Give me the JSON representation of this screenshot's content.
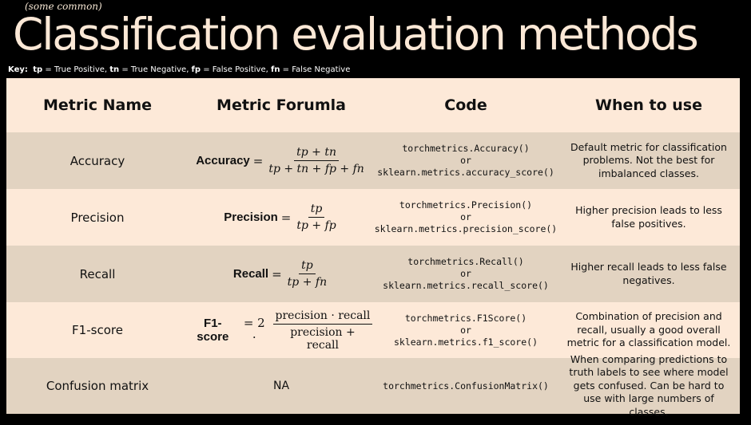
{
  "subtitle": "(some common)",
  "title": "Classification evaluation methods",
  "key": {
    "label": "Key:",
    "tp": "tp",
    "tp_def": " = True Positive, ",
    "tn": "tn",
    "tn_def": " = True Negative, ",
    "fp": "fp",
    "fp_def": " = False Positive, ",
    "fn": "fn",
    "fn_def": " = False Negative"
  },
  "headers": [
    "Metric Name",
    "Metric Forumla",
    "Code",
    "When to use"
  ],
  "rows": [
    {
      "name": "Accuracy",
      "formula_label": "Accuracy",
      "formula_eq": "=",
      "formula_num": "tp + tn",
      "formula_den": "tp + tn + fp + fn",
      "code1": "torchmetrics.Accuracy()",
      "code_or": "or",
      "code2": "sklearn.metrics.accuracy_score()",
      "use": "Default metric for classification problems. Not the best for imbalanced classes."
    },
    {
      "name": "Precision",
      "formula_label": "Precision",
      "formula_eq": "=",
      "formula_num": "tp",
      "formula_den": "tp + fp",
      "code1": "torchmetrics.Precision()",
      "code_or": "or",
      "code2": "sklearn.metrics.precision_score()",
      "use": "Higher precision leads to less false positives."
    },
    {
      "name": "Recall",
      "formula_label": "Recall",
      "formula_eq": "=",
      "formula_num": "tp",
      "formula_den": "tp + fn",
      "code1": "torchmetrics.Recall()",
      "code_or": "or",
      "code2": "sklearn.metrics.recall_score()",
      "use": "Higher recall leads to less false negatives."
    },
    {
      "name": "F1-score",
      "formula_label": "F1-score",
      "formula_eq": "= 2 ·",
      "formula_num": "precision · recall",
      "formula_den": "precision + recall",
      "code1": "torchmetrics.F1Score()",
      "code_or": "or",
      "code2": "sklearn.metrics.f1_score()",
      "use": "Combination of precision and recall, usually a good overall metric for a classification model."
    },
    {
      "name": "Confusion matrix",
      "formula_text": "NA",
      "code1": "torchmetrics.ConfusionMatrix()",
      "use": "When comparing predictions to truth labels to see where model gets confused. Can be hard to use with large numbers of classes."
    }
  ]
}
